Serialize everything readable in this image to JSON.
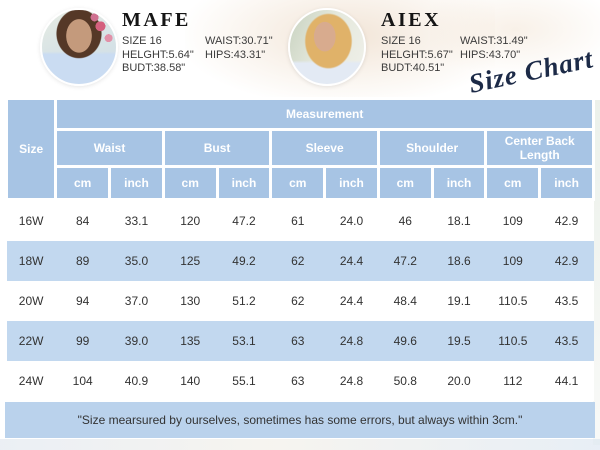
{
  "models": [
    {
      "name": "MAFE",
      "col1": [
        "SIZE 16",
        "HELGHT:5.64\"",
        "BUDT:38.58\""
      ],
      "col2": [
        "WAIST:30.71\"",
        "HIPS:43.31\""
      ]
    },
    {
      "name": "AIEX",
      "col1": [
        "SIZE 16",
        "HELGHT:5.67\"",
        "BUDT:40.51\""
      ],
      "col2": [
        "WAIST:31.49\"",
        "HIPS:43.70\""
      ]
    }
  ],
  "badge": {
    "text": "Size Chart"
  },
  "table": {
    "size_label": "Size",
    "measurement_label": "Measurement",
    "groups": [
      "Waist",
      "Bust",
      "Sleeve",
      "Shoulder",
      "Center Back Length"
    ],
    "units": {
      "cm": "cm",
      "inch": "inch"
    },
    "rows": [
      {
        "size": "16W",
        "cells": [
          "84",
          "33.1",
          "120",
          "47.2",
          "61",
          "24.0",
          "46",
          "18.1",
          "109",
          "42.9"
        ]
      },
      {
        "size": "18W",
        "cells": [
          "89",
          "35.0",
          "125",
          "49.2",
          "62",
          "24.4",
          "47.2",
          "18.6",
          "109",
          "42.9"
        ]
      },
      {
        "size": "20W",
        "cells": [
          "94",
          "37.0",
          "130",
          "51.2",
          "62",
          "24.4",
          "48.4",
          "19.1",
          "110.5",
          "43.5"
        ]
      },
      {
        "size": "22W",
        "cells": [
          "99",
          "39.0",
          "135",
          "53.1",
          "63",
          "24.8",
          "49.6",
          "19.5",
          "110.5",
          "43.5"
        ]
      },
      {
        "size": "24W",
        "cells": [
          "104",
          "40.9",
          "140",
          "55.1",
          "63",
          "24.8",
          "50.8",
          "20.0",
          "112",
          "44.1"
        ]
      }
    ],
    "note": "\"Size mearsured by ourselves, sometimes has some errors, but always within 3cm.\""
  },
  "colors": {
    "header_blue": "#a7c4e4",
    "row_alt_blue": "#c2d8ef",
    "note_blue": "#bad2ec",
    "script_navy": "#1c2a47",
    "text_dark": "#333333"
  },
  "chart_data": {
    "type": "table",
    "title": "Size Chart",
    "columns": [
      "Size",
      "Waist cm",
      "Waist inch",
      "Bust cm",
      "Bust inch",
      "Sleeve cm",
      "Sleeve inch",
      "Shoulder cm",
      "Shoulder inch",
      "Center Back Length cm",
      "Center Back Length inch"
    ],
    "rows": [
      [
        "16W",
        84,
        33.1,
        120,
        47.2,
        61,
        24.0,
        46,
        18.1,
        109,
        42.9
      ],
      [
        "18W",
        89,
        35.0,
        125,
        49.2,
        62,
        24.4,
        47.2,
        18.6,
        109,
        42.9
      ],
      [
        "20W",
        94,
        37.0,
        130,
        51.2,
        62,
        24.4,
        48.4,
        19.1,
        110.5,
        43.5
      ],
      [
        "22W",
        99,
        39.0,
        135,
        53.1,
        63,
        24.8,
        49.6,
        19.5,
        110.5,
        43.5
      ],
      [
        "24W",
        104,
        40.9,
        140,
        55.1,
        63,
        24.8,
        50.8,
        20.0,
        112,
        44.1
      ]
    ],
    "note": "Size mearsured by ourselves, sometimes has some errors, but always within 3cm.",
    "model_specs": [
      {
        "model": "MAFE",
        "size": "16",
        "height_ft": 5.64,
        "bust_in": 38.58,
        "waist_in": 30.71,
        "hips_in": 43.31
      },
      {
        "model": "AIEX",
        "size": "16",
        "height_ft": 5.67,
        "bust_in": 40.51,
        "waist_in": 31.49,
        "hips_in": 43.7
      }
    ]
  }
}
